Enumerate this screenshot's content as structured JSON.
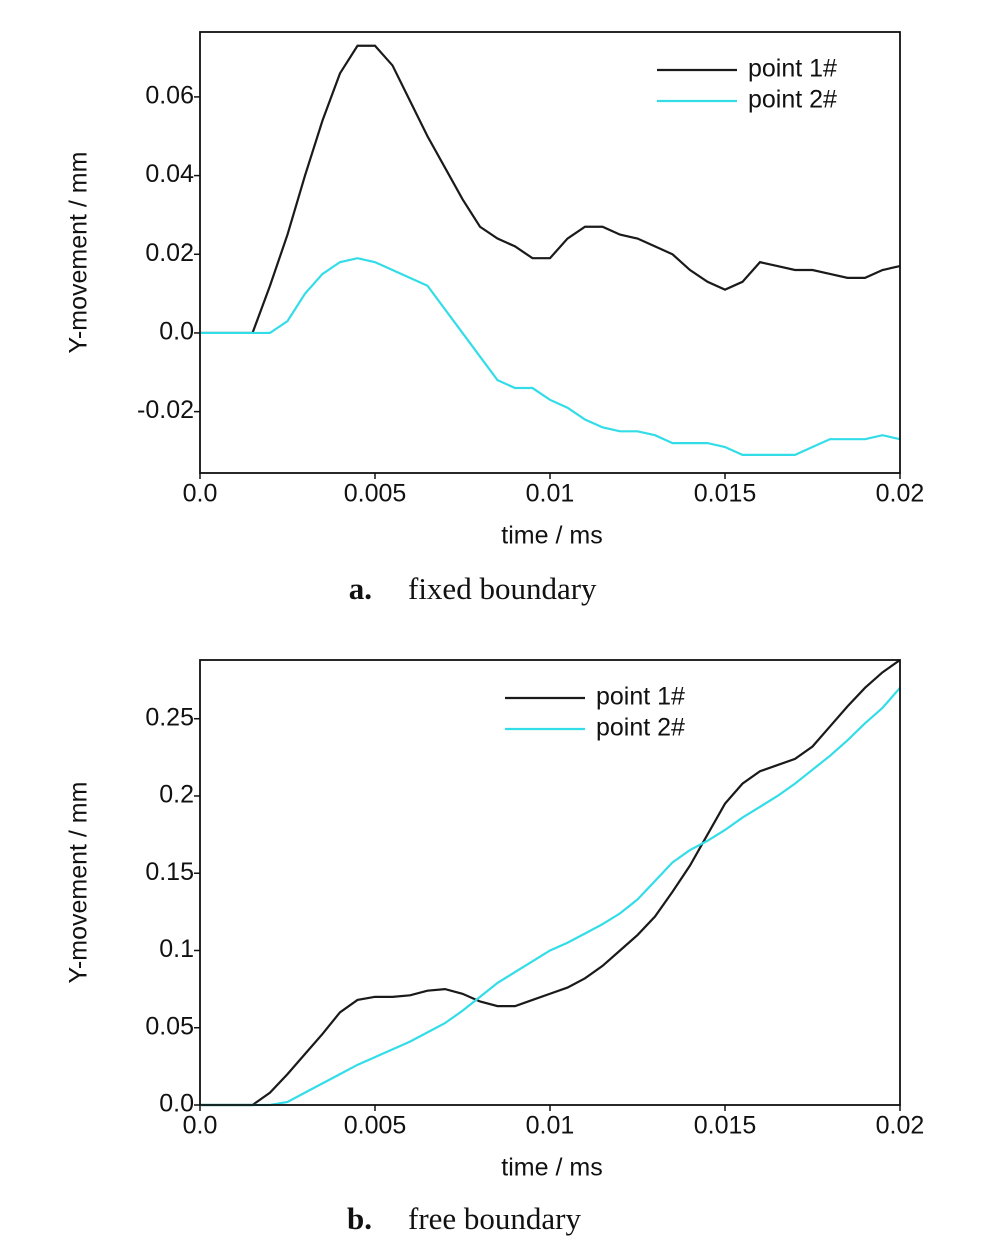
{
  "chart_data": [
    {
      "type": "line",
      "caption_label": "a.",
      "caption": "fixed boundary",
      "x_label": "time / ms",
      "y_label": "Y-movement / mm",
      "x": [
        0,
        0.0005,
        0.001,
        0.0015,
        0.002,
        0.0025,
        0.003,
        0.0035,
        0.004,
        0.0045,
        0.005,
        0.0055,
        0.006,
        0.0065,
        0.007,
        0.0075,
        0.008,
        0.0085,
        0.009,
        0.0095,
        0.01,
        0.0105,
        0.011,
        0.0115,
        0.012,
        0.0125,
        0.013,
        0.0135,
        0.014,
        0.0145,
        0.015,
        0.0155,
        0.016,
        0.0165,
        0.017,
        0.0175,
        0.018,
        0.0185,
        0.019,
        0.0195,
        0.02
      ],
      "series": [
        {
          "name": "point 1#",
          "color": "#1a1a1a",
          "values": [
            0,
            0,
            0,
            0,
            0.012,
            0.025,
            0.04,
            0.054,
            0.066,
            0.073,
            0.073,
            0.068,
            0.059,
            0.05,
            0.042,
            0.034,
            0.027,
            0.024,
            0.022,
            0.019,
            0.019,
            0.024,
            0.027,
            0.027,
            0.025,
            0.024,
            0.022,
            0.02,
            0.016,
            0.013,
            0.011,
            0.013,
            0.018,
            0.017,
            0.016,
            0.016,
            0.015,
            0.014,
            0.014,
            0.016,
            0.017
          ]
        },
        {
          "name": "point 2#",
          "color": "#33dde8",
          "values": [
            0,
            0,
            0,
            0,
            0,
            0.003,
            0.01,
            0.015,
            0.018,
            0.019,
            0.018,
            0.016,
            0.014,
            0.012,
            0.006,
            0,
            -0.006,
            -0.012,
            -0.014,
            -0.014,
            -0.017,
            -0.019,
            -0.022,
            -0.024,
            -0.025,
            -0.025,
            -0.026,
            -0.028,
            -0.028,
            -0.028,
            -0.029,
            -0.031,
            -0.031,
            -0.031,
            -0.031,
            -0.029,
            -0.027,
            -0.027,
            -0.027,
            -0.026,
            -0.027
          ]
        }
      ],
      "xlim": [
        0,
        0.02
      ],
      "xticks": [
        {
          "value": 0,
          "label": "0.0"
        },
        0.005,
        0.01,
        0.015,
        0.02
      ],
      "ylim": [
        -0.0356,
        0.0765
      ],
      "yticks": [
        -0.02,
        {
          "value": 0,
          "label": "0.0"
        },
        0.02,
        0.04,
        0.06
      ],
      "legend": "upper right"
    },
    {
      "type": "line",
      "caption_label": "b.",
      "caption": "free boundary",
      "x_label": "time / ms",
      "y_label": "Y-movement / mm",
      "x": [
        0,
        0.0005,
        0.001,
        0.0015,
        0.002,
        0.0025,
        0.003,
        0.0035,
        0.004,
        0.0045,
        0.005,
        0.0055,
        0.006,
        0.0065,
        0.007,
        0.0075,
        0.008,
        0.0085,
        0.009,
        0.0095,
        0.01,
        0.0105,
        0.011,
        0.0115,
        0.012,
        0.0125,
        0.013,
        0.0135,
        0.014,
        0.0145,
        0.015,
        0.0155,
        0.016,
        0.0165,
        0.017,
        0.0175,
        0.018,
        0.0185,
        0.019,
        0.0195,
        0.02
      ],
      "series": [
        {
          "name": "point 1#",
          "color": "#1a1a1a",
          "values": [
            0,
            0,
            0,
            0,
            0.008,
            0.02,
            0.033,
            0.046,
            0.06,
            0.068,
            0.07,
            0.07,
            0.071,
            0.074,
            0.075,
            0.072,
            0.067,
            0.064,
            0.064,
            0.068,
            0.072,
            0.076,
            0.082,
            0.09,
            0.1,
            0.11,
            0.122,
            0.138,
            0.155,
            0.175,
            0.195,
            0.208,
            0.216,
            0.22,
            0.224,
            0.232,
            0.245,
            0.258,
            0.27,
            0.28,
            0.288
          ]
        },
        {
          "name": "point 2#",
          "color": "#33dde8",
          "values": [
            0,
            0,
            0,
            0,
            0,
            0.002,
            0.008,
            0.014,
            0.02,
            0.026,
            0.031,
            0.036,
            0.041,
            0.047,
            0.053,
            0.061,
            0.07,
            0.079,
            0.086,
            0.093,
            0.1,
            0.105,
            0.111,
            0.117,
            0.124,
            0.133,
            0.145,
            0.157,
            0.165,
            0.171,
            0.178,
            0.186,
            0.193,
            0.2,
            0.208,
            0.217,
            0.226,
            0.236,
            0.247,
            0.257,
            0.27
          ]
        }
      ],
      "xlim": [
        0,
        0.02
      ],
      "xticks": [
        {
          "value": 0,
          "label": "0.0"
        },
        0.005,
        0.01,
        0.015,
        0.02
      ],
      "ylim": [
        0,
        0.288
      ],
      "yticks": [
        {
          "value": 0,
          "label": "0.0"
        },
        0.05,
        0.1,
        0.15,
        0.2,
        0.25
      ],
      "legend": "upper center"
    }
  ]
}
